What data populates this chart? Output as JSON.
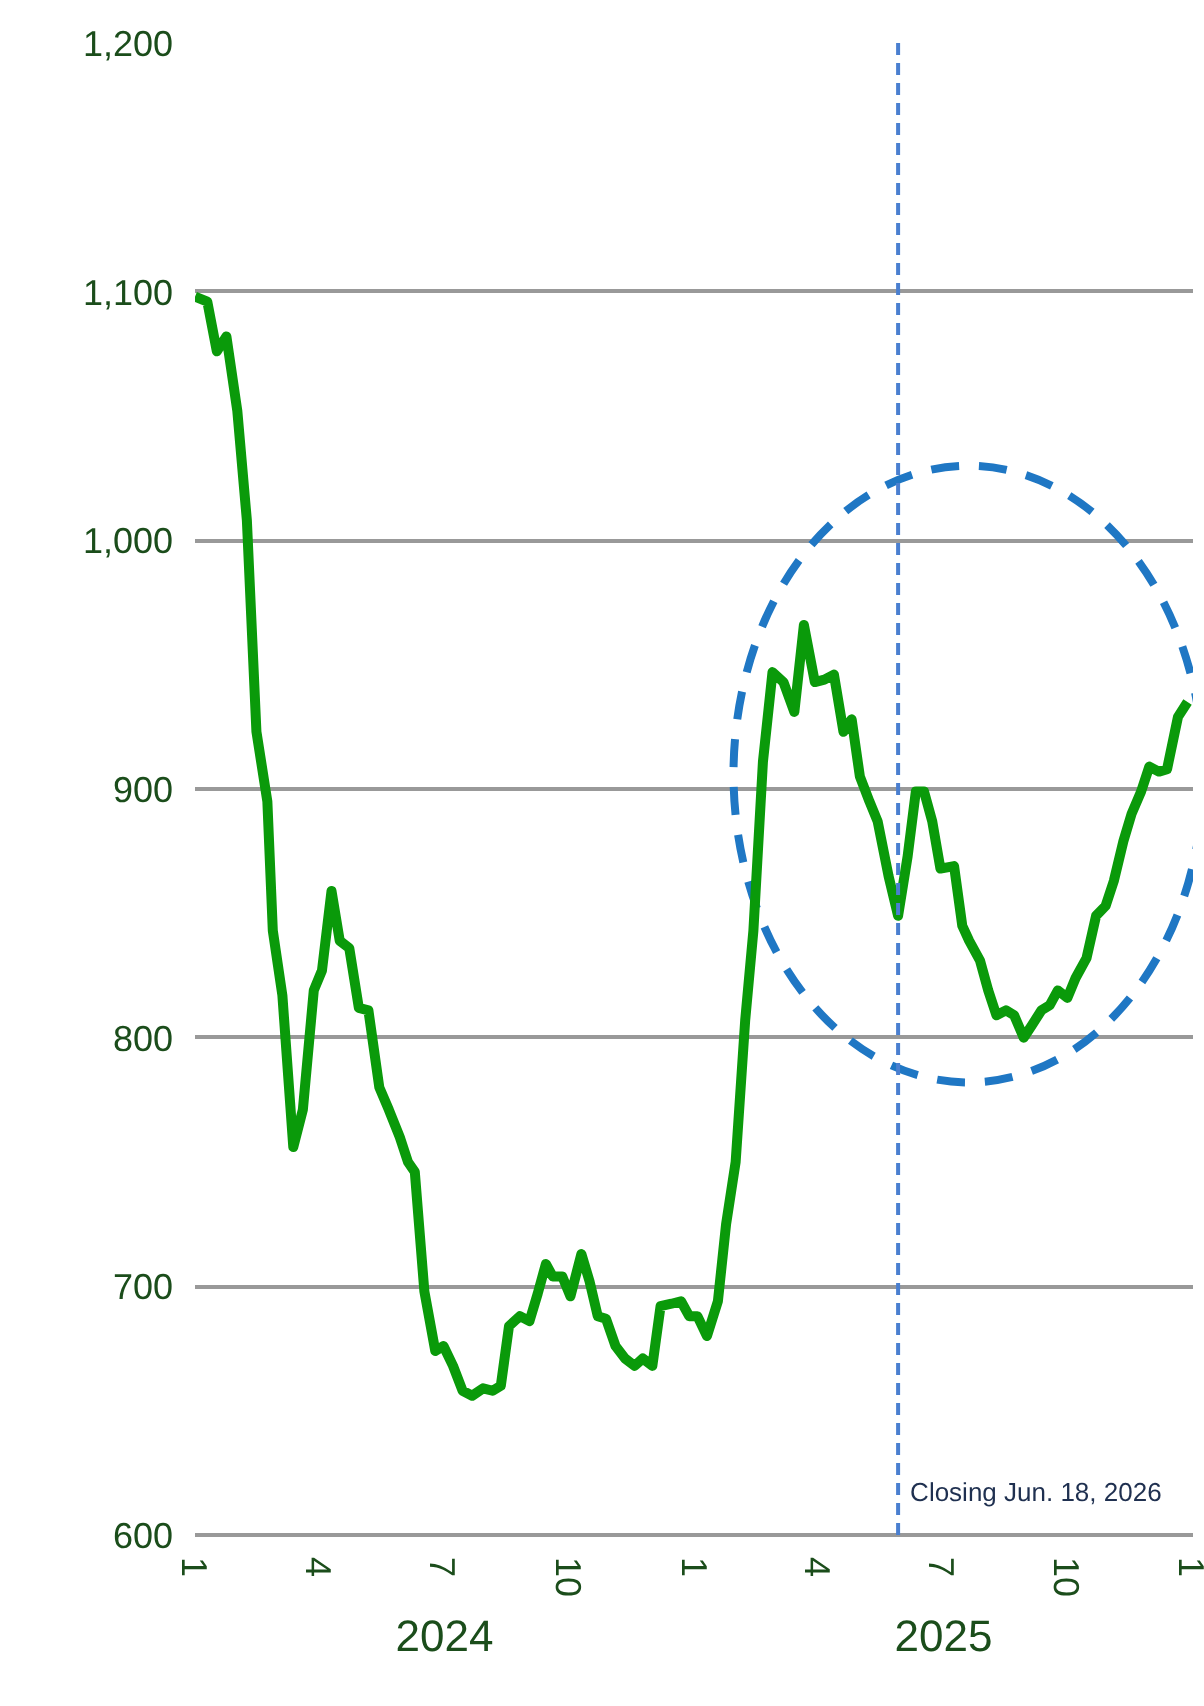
{
  "chart_data": {
    "type": "line",
    "x": [
      "2024-01-01",
      "2024-01-10",
      "2024-01-17",
      "2024-01-24",
      "2024-02-01",
      "2024-02-08",
      "2024-02-15",
      "2024-02-23",
      "2024-02-27",
      "2024-03-05",
      "2024-03-13",
      "2024-03-20",
      "2024-03-28",
      "2024-04-03",
      "2024-04-10",
      "2024-04-16",
      "2024-04-23",
      "2024-04-30",
      "2024-05-07",
      "2024-05-15",
      "2024-05-22",
      "2024-05-30",
      "2024-06-05",
      "2024-06-10",
      "2024-06-17",
      "2024-06-25",
      "2024-07-01",
      "2024-07-08",
      "2024-07-15",
      "2024-07-22",
      "2024-07-30",
      "2024-08-06",
      "2024-08-12",
      "2024-08-18",
      "2024-08-26",
      "2024-09-02",
      "2024-09-08",
      "2024-09-14",
      "2024-09-19",
      "2024-09-26",
      "2024-10-02",
      "2024-10-10",
      "2024-10-16",
      "2024-10-22",
      "2024-10-28",
      "2024-11-04",
      "2024-11-11",
      "2024-11-18",
      "2024-11-24",
      "2024-12-01",
      "2024-12-07",
      "2024-12-15",
      "2024-12-22",
      "2024-12-28",
      "2025-01-03",
      "2025-01-10",
      "2025-01-18",
      "2025-01-24",
      "2025-01-31",
      "2025-02-07",
      "2025-02-13",
      "2025-02-20",
      "2025-02-27",
      "2025-03-07",
      "2025-03-15",
      "2025-03-22",
      "2025-03-30",
      "2025-04-06",
      "2025-04-13",
      "2025-04-20",
      "2025-04-26",
      "2025-05-02",
      "2025-05-09",
      "2025-05-15",
      "2025-05-23",
      "2025-05-30",
      "2025-06-06",
      "2025-06-12",
      "2025-06-18",
      "2025-06-24",
      "2025-06-30",
      "2025-07-10",
      "2025-07-16",
      "2025-07-21",
      "2025-07-29",
      "2025-08-04",
      "2025-08-10",
      "2025-08-17",
      "2025-08-23",
      "2025-08-30",
      "2025-09-05",
      "2025-09-12",
      "2025-09-18",
      "2025-09-24",
      "2025-10-01",
      "2025-10-07",
      "2025-10-15",
      "2025-10-22",
      "2025-10-29",
      "2025-11-04",
      "2025-11-11",
      "2025-11-17",
      "2025-11-24",
      "2025-11-30",
      "2025-12-07",
      "2025-12-13",
      "2025-12-21",
      "2025-12-28"
    ],
    "series": [
      {
        "color": "#0a9a0a",
        "values": [
          1098,
          1096,
          1076,
          1082,
          1052,
          1008,
          923,
          895,
          843,
          817,
          756,
          771,
          819,
          827,
          859,
          839,
          836,
          812,
          811,
          780,
          771,
          760,
          750,
          746,
          698,
          674,
          676,
          668,
          658,
          656,
          659,
          658,
          660,
          684,
          688,
          686,
          697,
          709,
          704,
          704,
          696,
          713,
          702,
          688,
          687,
          676,
          671,
          668,
          671,
          668,
          692,
          693,
          694,
          688,
          688,
          680,
          694,
          725,
          750,
          807,
          843,
          911,
          947,
          943,
          931,
          966,
          943,
          944,
          946,
          923,
          928,
          905,
          895,
          887,
          865,
          849,
          873,
          899,
          899,
          887,
          868,
          869,
          845,
          839,
          831,
          819,
          809,
          811,
          809,
          800,
          805,
          811,
          813,
          819,
          816,
          824,
          832,
          849,
          853,
          863,
          879,
          890,
          899,
          909,
          907,
          908,
          929,
          935
        ]
      }
    ],
    "xlim": [
      "2024-01-01",
      "2026-01-01"
    ],
    "xticks": [
      {
        "value": "2024-01-01",
        "label": "1"
      },
      {
        "value": "2024-04-01",
        "label": "4"
      },
      {
        "value": "2024-07-01",
        "label": "7"
      },
      {
        "value": "2024-10-01",
        "label": "10"
      },
      {
        "value": "2025-01-01",
        "label": "1"
      },
      {
        "value": "2025-04-01",
        "label": "4"
      },
      {
        "value": "2025-07-01",
        "label": "7"
      },
      {
        "value": "2025-10-01",
        "label": "10"
      },
      {
        "value": "2026-01-01",
        "label": "1"
      }
    ],
    "ylim": [
      600,
      1200
    ],
    "yticks": [
      {
        "value": 600,
        "label": "600"
      },
      {
        "value": 700,
        "label": "700"
      },
      {
        "value": 800,
        "label": "800"
      },
      {
        "value": 900,
        "label": "900"
      },
      {
        "value": 1000,
        "label": "1,000"
      },
      {
        "value": 1100,
        "label": "1,100"
      },
      {
        "value": 1200,
        "label": "1,200"
      }
    ],
    "grid": "y",
    "line_style": "solid",
    "ref_lines": [
      {
        "axis": "x",
        "value": "2025-05-30",
        "label": "Closing Jun. 18, 2026",
        "color": "#4a7fd0",
        "line_style": "dashed"
      }
    ],
    "annotations": [
      "2024",
      "2025"
    ]
  }
}
